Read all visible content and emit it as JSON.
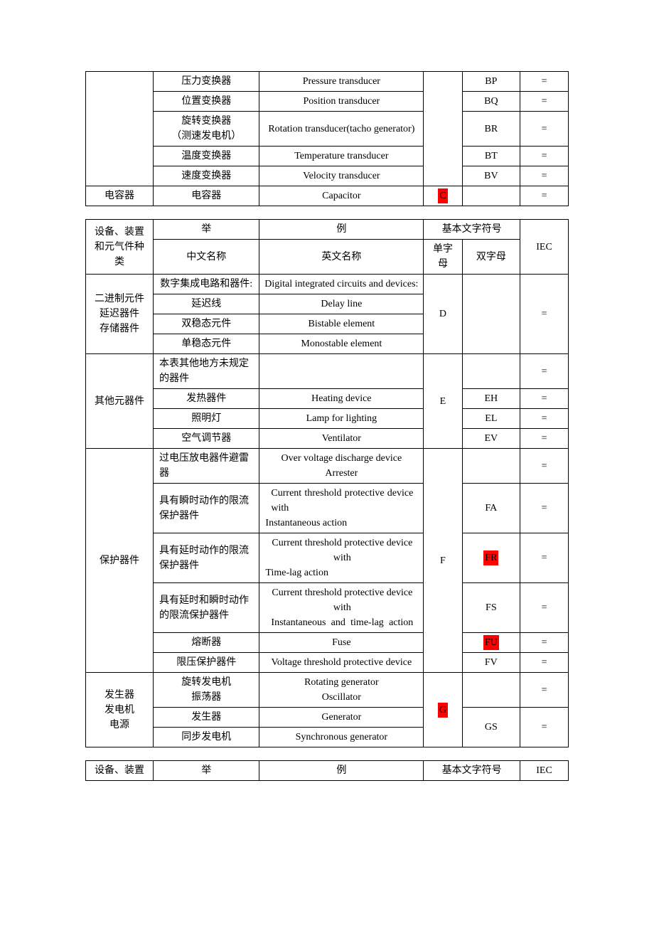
{
  "colors": {
    "highlight": "#ff0000",
    "text": "#000000",
    "border": "#000000",
    "background": "#ffffff"
  },
  "table1": {
    "rows": [
      {
        "cat": "",
        "zh": "压力变换器",
        "en": "Pressure transducer",
        "s": "",
        "d": "BP",
        "i": "="
      },
      {
        "cat": "",
        "zh": "位置变换器",
        "en": "Position transducer",
        "s": "",
        "d": "BQ",
        "i": "="
      },
      {
        "cat": "",
        "zh": "旋转变换器\n（测速发电机）",
        "en": "Rotation transducer(tacho generator)",
        "s": "",
        "d": "BR",
        "i": "="
      },
      {
        "cat": "",
        "zh": "温度变换器",
        "en": "Temperature transducer",
        "s": "",
        "d": "BT",
        "i": "="
      },
      {
        "cat": "",
        "zh": "速度变换器",
        "en": "Velocity transducer",
        "s": "",
        "d": "BV",
        "i": "="
      },
      {
        "cat": "电容器",
        "zh": "电容器",
        "en": "Capacitor",
        "s": "C",
        "s_hl": true,
        "d": "",
        "i": "="
      }
    ]
  },
  "table2": {
    "header": {
      "h1": "设备、装置和元气件种类",
      "h2": "举",
      "h3": "例",
      "h4": "基本文字符号",
      "h5": "中文名称",
      "h6": "英文名称",
      "h7": "单字母",
      "h8": "双字母",
      "h9": "IEC"
    },
    "groups": [
      {
        "cat": "二进制元件\n延迟器件\n存储器件",
        "single": "D",
        "single_hl": false,
        "rows": [
          {
            "zh": "数字集成电路和器件:",
            "en": "Digital integrated circuits and devices:",
            "d": null,
            "i": null
          },
          {
            "zh": "延迟线",
            "en": "Delay line",
            "d": null,
            "i": "=",
            "i_rowspan": 1
          },
          {
            "zh": "双稳态元件",
            "en": "Bistable element",
            "d": null,
            "i": null
          },
          {
            "zh": "单稳态元件",
            "en": "Monostable element",
            "d": null,
            "i": null
          }
        ],
        "d_span": 4,
        "d_val": "",
        "i_rowspan": 4,
        "i_val": "="
      },
      {
        "cat": "其他元器件",
        "single": "E",
        "single_hl": false,
        "rows": [
          {
            "zh": "本表其他地方未规定的器件",
            "en": "",
            "d": "",
            "i": "="
          },
          {
            "zh": "发热器件",
            "en": "Heating device",
            "d": "EH",
            "i": "="
          },
          {
            "zh": "照明灯",
            "en": "Lamp for lighting",
            "d": "EL",
            "i": "="
          },
          {
            "zh": "空气调节器",
            "en": "Ventilator",
            "d": "EV",
            "i": "="
          }
        ]
      },
      {
        "cat": "保护器件",
        "single": "F",
        "single_hl": false,
        "rows": [
          {
            "zh": "过电压放电器件避雷器",
            "en": "Over voltage discharge device Arrester",
            "d": "",
            "i": "="
          },
          {
            "zh": "具有瞬时动作的限流保护器件",
            "en_just": "Current threshold protective device with",
            "en2": "Instantaneous action",
            "d": "FA",
            "i": "="
          },
          {
            "zh": "具有延时动作的限流保护器件",
            "en": "Current threshold protective device with",
            "en2_left": "Time-lag action",
            "d": "FR",
            "d_hl": true,
            "i": "="
          },
          {
            "zh": "具有延时和瞬时动作的限流保护器件",
            "en": "Current threshold protective device with",
            "en3_just": "Instantaneous and time-lag action",
            "d": "FS",
            "i": "="
          },
          {
            "zh": "熔断器",
            "en": "Fuse",
            "d": "FU",
            "d_hl": true,
            "i": "="
          },
          {
            "zh": "限压保护器件",
            "en": "Voltage threshold protective device",
            "d": "FV",
            "i": "="
          }
        ]
      },
      {
        "cat": "发生器\n发电机\n电源",
        "single": "G",
        "single_hl": true,
        "rows": [
          {
            "zh": "旋转发电机\n振荡器",
            "en": "Rotating generator\nOscillator",
            "d": "",
            "i": "=",
            "d_rowspan": 1
          },
          {
            "zh": "发生器",
            "en": "Generator",
            "d": "GS",
            "d_rowspan": 2,
            "i": "=",
            "i_rowspan": 2
          },
          {
            "zh": "同步发电机",
            "en": "Synchronous generator"
          }
        ]
      }
    ]
  },
  "table3": {
    "header": {
      "h1": "设备、装置",
      "h2": "举",
      "h3": "例",
      "h4": "基本文字符号",
      "h5": "IEC"
    }
  }
}
